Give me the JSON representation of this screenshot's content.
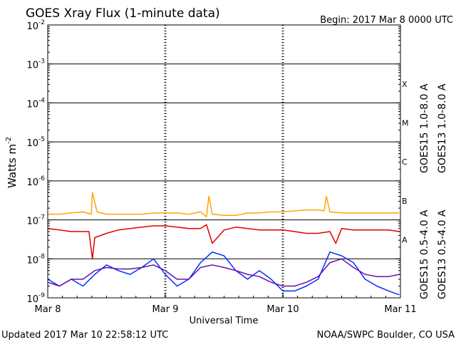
{
  "chart_data": {
    "type": "line",
    "title": "GOES Xray Flux (1-minute data)",
    "begin_label": "Begin:  2017 Mar 8 0000 UTC",
    "xlabel": "Universal Time",
    "ylabel": "Watts m",
    "ylabel_sup": "-2",
    "y_scale": "log",
    "ylim": [
      1e-09,
      0.01
    ],
    "y_ticks": [
      {
        "base": "10",
        "exp": "-9"
      },
      {
        "base": "10",
        "exp": "-8"
      },
      {
        "base": "10",
        "exp": "-7"
      },
      {
        "base": "10",
        "exp": "-6"
      },
      {
        "base": "10",
        "exp": "-5"
      },
      {
        "base": "10",
        "exp": "-4"
      },
      {
        "base": "10",
        "exp": "-3"
      },
      {
        "base": "10",
        "exp": "-2"
      }
    ],
    "x_unit": "day since 2017 Mar 8 0000 UTC",
    "xlim": [
      0,
      3
    ],
    "x_ticks": [
      {
        "x": 0,
        "label": "Mar 8"
      },
      {
        "x": 1,
        "label": "Mar 9"
      },
      {
        "x": 2,
        "label": "Mar 10"
      },
      {
        "x": 3,
        "label": "Mar 11"
      }
    ],
    "flare_classes": [
      {
        "label": "A",
        "y": 3.2e-08
      },
      {
        "label": "B",
        "y": 3.2e-07
      },
      {
        "label": "C",
        "y": 3.2e-06
      },
      {
        "label": "M",
        "y": 3.2e-05
      },
      {
        "label": "X",
        "y": 0.00032
      }
    ],
    "grid": true,
    "legend_position": "right",
    "series": [
      {
        "name": "GOES15 1.0-8.0 A",
        "color": "#e00000",
        "x": [
          0,
          0.1,
          0.2,
          0.3,
          0.35,
          0.38,
          0.4,
          0.5,
          0.6,
          0.7,
          0.8,
          0.9,
          1.0,
          1.1,
          1.2,
          1.3,
          1.35,
          1.4,
          1.5,
          1.6,
          1.7,
          1.8,
          1.9,
          2.0,
          2.1,
          2.2,
          2.3,
          2.4,
          2.45,
          2.5,
          2.6,
          2.7,
          2.8,
          2.9,
          2.99
        ],
        "y": [
          6e-08,
          5.5e-08,
          5e-08,
          5e-08,
          5e-08,
          1e-08,
          3.5e-08,
          4.5e-08,
          5.5e-08,
          6e-08,
          6.5e-08,
          7e-08,
          7e-08,
          6.5e-08,
          6e-08,
          6e-08,
          7.5e-08,
          2.5e-08,
          5.5e-08,
          6.5e-08,
          6e-08,
          5.5e-08,
          5.5e-08,
          5.5e-08,
          5e-08,
          4.5e-08,
          4.5e-08,
          5e-08,
          2.5e-08,
          6e-08,
          5.5e-08,
          5.5e-08,
          5.5e-08,
          5.5e-08,
          5e-08
        ]
      },
      {
        "name": "GOES13 1.0-8.0 A",
        "color": "#ffa500",
        "x": [
          0,
          0.1,
          0.2,
          0.3,
          0.37,
          0.38,
          0.42,
          0.5,
          0.6,
          0.7,
          0.8,
          0.9,
          1.0,
          1.1,
          1.2,
          1.3,
          1.35,
          1.37,
          1.4,
          1.5,
          1.6,
          1.7,
          1.8,
          1.9,
          2.0,
          2.1,
          2.2,
          2.3,
          2.35,
          2.37,
          2.4,
          2.5,
          2.6,
          2.7,
          2.8,
          2.9,
          2.99
        ],
        "y": [
          1.4e-07,
          1.4e-07,
          1.5e-07,
          1.6e-07,
          1.4e-07,
          5e-07,
          1.6e-07,
          1.4e-07,
          1.4e-07,
          1.4e-07,
          1.4e-07,
          1.5e-07,
          1.5e-07,
          1.5e-07,
          1.4e-07,
          1.6e-07,
          1.2e-07,
          4e-07,
          1.4e-07,
          1.3e-07,
          1.3e-07,
          1.5e-07,
          1.5e-07,
          1.6e-07,
          1.6e-07,
          1.7e-07,
          1.8e-07,
          1.8e-07,
          1.7e-07,
          4e-07,
          1.6e-07,
          1.5e-07,
          1.5e-07,
          1.5e-07,
          1.5e-07,
          1.5e-07,
          1.5e-07
        ]
      },
      {
        "name": "GOES15 0.5-4.0 A",
        "color": "#0030ff",
        "x": [
          0,
          0.1,
          0.2,
          0.3,
          0.4,
          0.5,
          0.6,
          0.7,
          0.8,
          0.9,
          1.0,
          1.1,
          1.2,
          1.3,
          1.4,
          1.5,
          1.6,
          1.7,
          1.8,
          1.9,
          2.0,
          2.1,
          2.2,
          2.3,
          2.4,
          2.5,
          2.6,
          2.7,
          2.8,
          2.9,
          2.99
        ],
        "y": [
          3e-09,
          2e-09,
          3e-09,
          2e-09,
          4e-09,
          7e-09,
          5e-09,
          4e-09,
          6e-09,
          1e-08,
          4e-09,
          2e-09,
          3e-09,
          8e-09,
          1.5e-08,
          1.2e-08,
          5e-09,
          3e-09,
          5e-09,
          3e-09,
          1.5e-09,
          1.5e-09,
          2e-09,
          3e-09,
          1.5e-08,
          1.2e-08,
          8e-09,
          3e-09,
          2e-09,
          1.5e-09,
          1.2e-09
        ]
      },
      {
        "name": "GOES13 0.5-4.0 A",
        "color": "#6a0dad",
        "x": [
          0,
          0.1,
          0.2,
          0.3,
          0.4,
          0.5,
          0.6,
          0.7,
          0.8,
          0.9,
          1.0,
          1.1,
          1.2,
          1.3,
          1.4,
          1.5,
          1.6,
          1.7,
          1.8,
          1.9,
          2.0,
          2.1,
          2.2,
          2.3,
          2.4,
          2.5,
          2.6,
          2.7,
          2.8,
          2.9,
          2.99
        ],
        "y": [
          2.5e-09,
          2e-09,
          3e-09,
          3e-09,
          5e-09,
          6e-09,
          5.5e-09,
          5.5e-09,
          6e-09,
          7e-09,
          5e-09,
          3e-09,
          3e-09,
          6e-09,
          7e-09,
          6e-09,
          5e-09,
          4e-09,
          3.5e-09,
          2.5e-09,
          2e-09,
          2e-09,
          2.5e-09,
          3.5e-09,
          8e-09,
          1e-08,
          6e-09,
          4e-09,
          3.5e-09,
          3.5e-09,
          4e-09
        ]
      }
    ]
  },
  "footer": {
    "updated": "Updated 2017 Mar 10 22:58:12 UTC",
    "credit": "NOAA/SWPC Boulder, CO USA"
  }
}
